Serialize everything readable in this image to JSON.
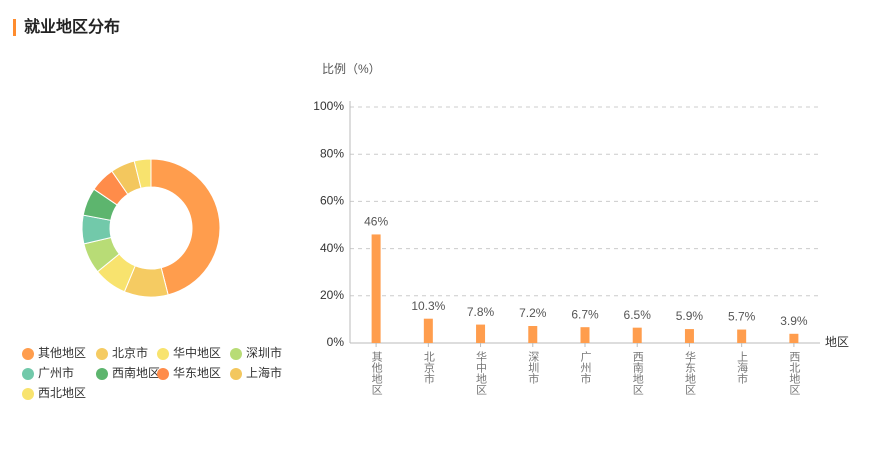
{
  "header": {
    "title": "就业地区分布"
  },
  "chart_data": [
    {
      "type": "donut",
      "categories": [
        "其他地区",
        "北京市",
        "华中地区",
        "深圳市",
        "广州市",
        "西南地区",
        "华东地区",
        "上海市",
        "西北地区"
      ],
      "values": [
        46,
        10.3,
        7.8,
        7.2,
        6.7,
        6.5,
        5.9,
        5.7,
        3.9
      ],
      "colors": [
        "#ff9d4d",
        "#f5cb62",
        "#f8e36e",
        "#b8dc76",
        "#72c9aa",
        "#5db56e",
        "#ff8c4a",
        "#f3c75e",
        "#f8e36e"
      ]
    },
    {
      "type": "bar",
      "ylabel": "比例（%）",
      "xlabel": "地区",
      "categories": [
        "其他地区",
        "北京市",
        "华中地区",
        "深圳市",
        "广州市",
        "西南地区",
        "华东地区",
        "上海市",
        "西北地区"
      ],
      "values": [
        46,
        10.3,
        7.8,
        7.2,
        6.7,
        6.5,
        5.9,
        5.7,
        3.9
      ],
      "value_labels": [
        "46%",
        "10.3%",
        "7.8%",
        "7.2%",
        "6.7%",
        "6.5%",
        "5.9%",
        "5.7%",
        "3.9%"
      ],
      "color": "#ff9d4d",
      "ylim": [
        0,
        100
      ],
      "yticks": [
        {
          "value": 0,
          "label": "0%"
        },
        {
          "value": 20,
          "label": "20%"
        },
        {
          "value": 40,
          "label": "40%"
        },
        {
          "value": 60,
          "label": "60%"
        },
        {
          "value": 80,
          "label": "80%"
        },
        {
          "value": 100,
          "label": "100%"
        }
      ],
      "grid": true
    }
  ]
}
